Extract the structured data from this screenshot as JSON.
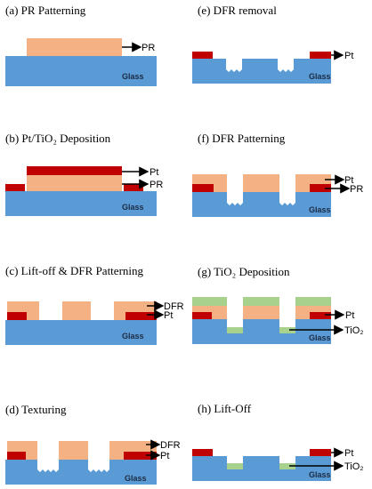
{
  "colors": {
    "glass": "#5b9bd5",
    "pr": "#f4b183",
    "pt": "#c00000",
    "tio2": "#a9d18e",
    "arrow": "#000000"
  },
  "panels": {
    "a": {
      "title": "(a)  PR Patterning",
      "pr": "PR",
      "glass": "Glass"
    },
    "b": {
      "title": "(b)  Pt/TiO₂ Deposition",
      "pt": "Pt",
      "pr": "PR",
      "glass": "Glass"
    },
    "c": {
      "title": "(c)  Lift-off & DFR Patterning",
      "dfr": "DFR",
      "pt": "Pt",
      "glass": "Glass"
    },
    "d": {
      "title": "(d)  Texturing",
      "dfr": "DFR",
      "pt": "Pt",
      "glass": "Glass"
    },
    "e": {
      "title": "(e)  DFR removal",
      "pt": "Pt",
      "glass": "Glass"
    },
    "f": {
      "title": "(f)  DFR Patterning",
      "pt": "Pt",
      "pr": "PR",
      "glass": "Glass"
    },
    "g": {
      "title": "(g)  TiO₂ Deposition",
      "pt": "Pt",
      "tio2": "TiO₂",
      "glass": "Glass"
    },
    "h": {
      "title": "(h)  Lift-Off",
      "pt": "Pt",
      "tio2": "TiO₂",
      "glass": "Glass"
    }
  }
}
